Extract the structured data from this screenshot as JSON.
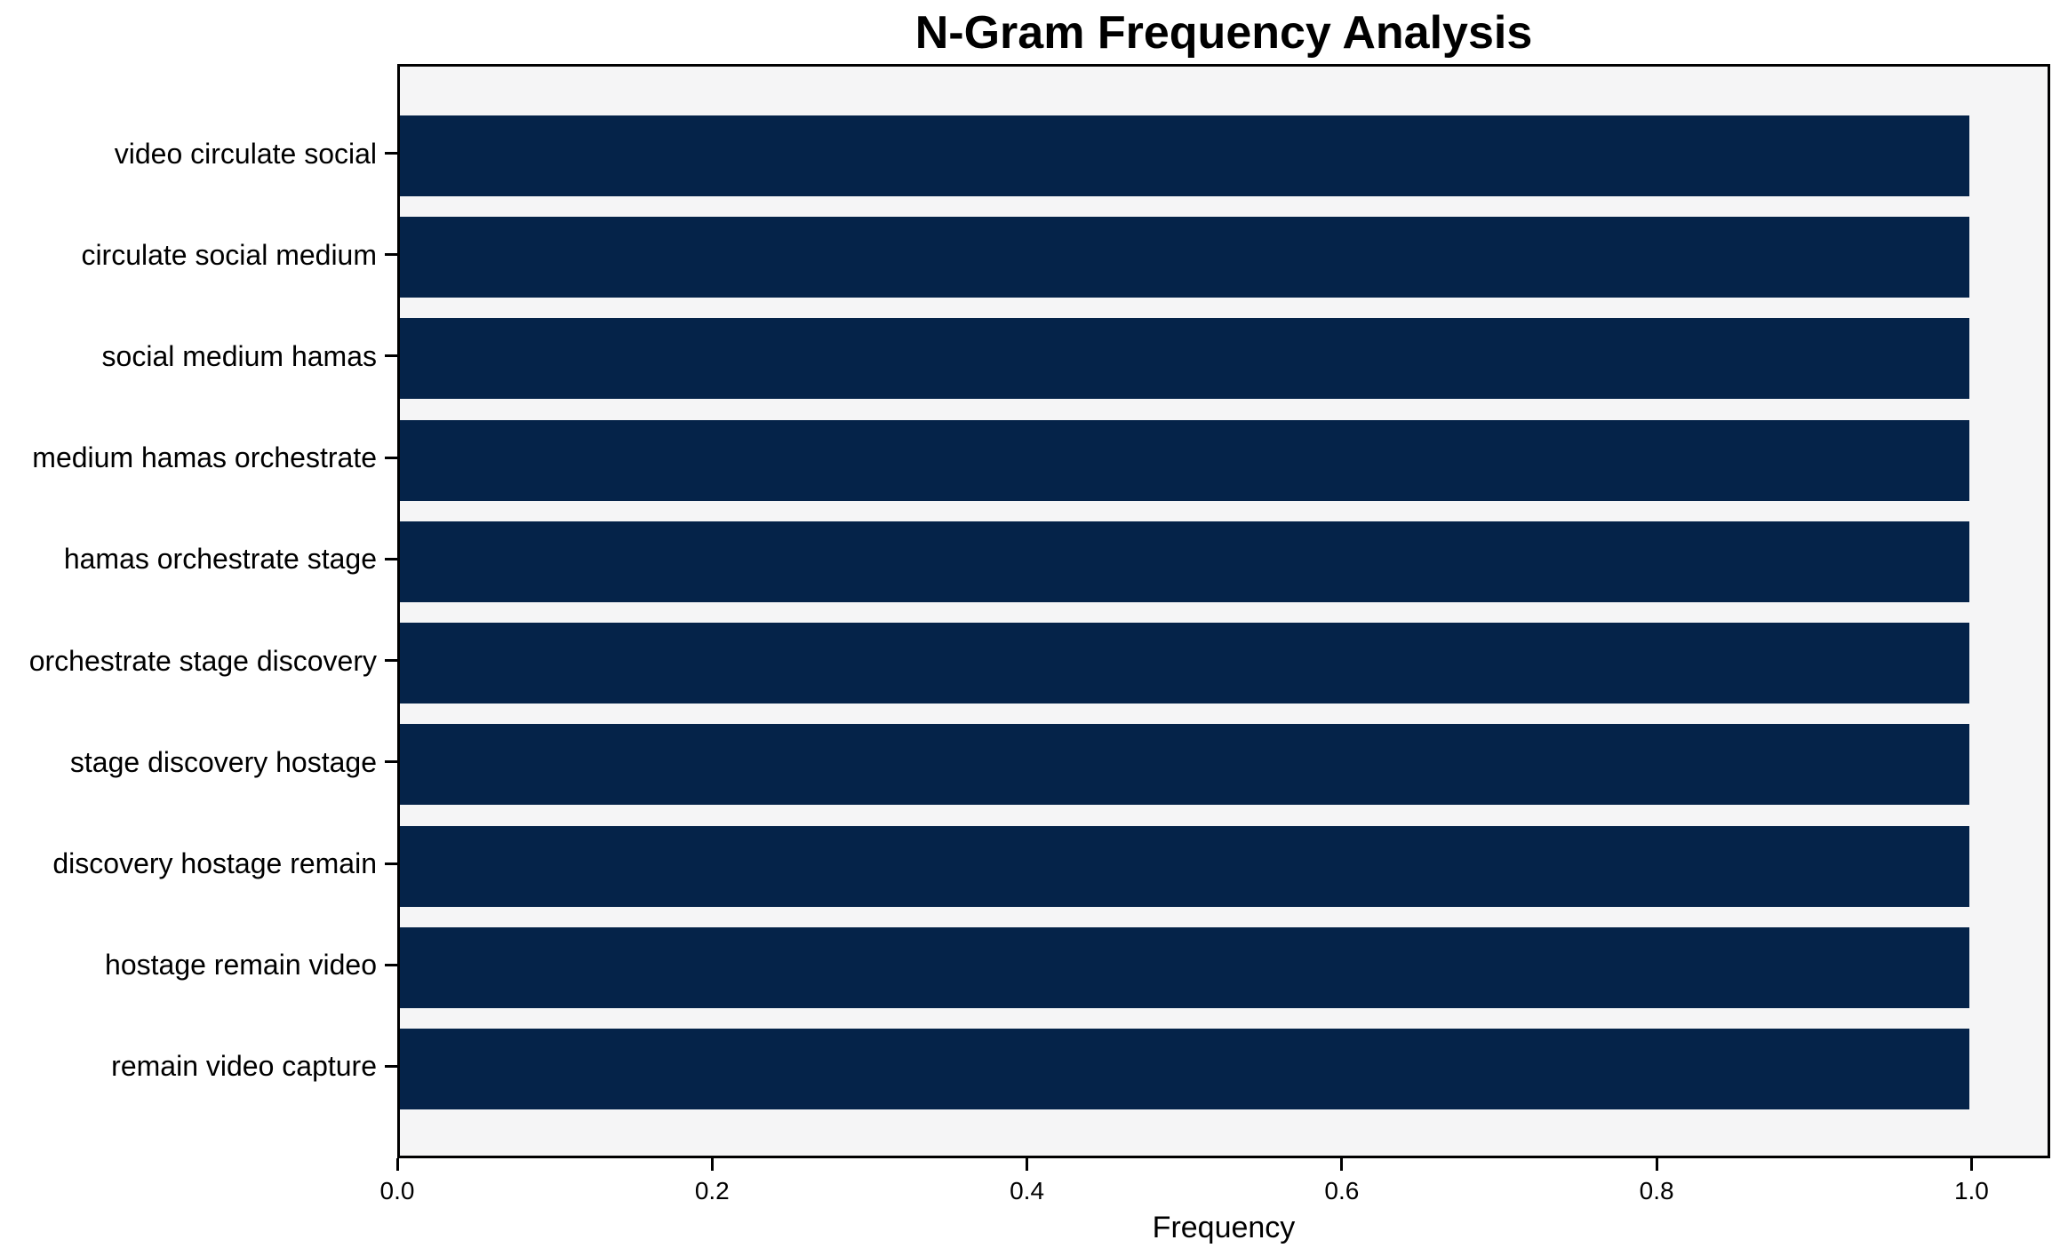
{
  "page": {
    "background_color": "#ffffff"
  },
  "chart_data": {
    "type": "bar",
    "orientation": "horizontal",
    "title": "N-Gram Frequency Analysis",
    "xlabel": "Frequency",
    "ylabel": "",
    "categories": [
      "video circulate social",
      "circulate social medium",
      "social medium hamas",
      "medium hamas orchestrate",
      "hamas orchestrate stage",
      "orchestrate stage discovery",
      "stage discovery hostage",
      "discovery hostage remain",
      "hostage remain video",
      "remain video capture"
    ],
    "values": [
      1.0,
      1.0,
      1.0,
      1.0,
      1.0,
      1.0,
      1.0,
      1.0,
      1.0,
      1.0
    ],
    "xlim": [
      0,
      1.05
    ],
    "x_ticks": [
      0.0,
      0.2,
      0.4,
      0.6,
      0.8,
      1.0
    ],
    "x_tick_labels": [
      "0.0",
      "0.2",
      "0.4",
      "0.6",
      "0.8",
      "1.0"
    ],
    "grid": false,
    "legend_position": "none",
    "bar_color": "#052349",
    "plot_bg_color": "#f5f5f6",
    "axis_color": "#000000",
    "text_color": "#000000"
  }
}
